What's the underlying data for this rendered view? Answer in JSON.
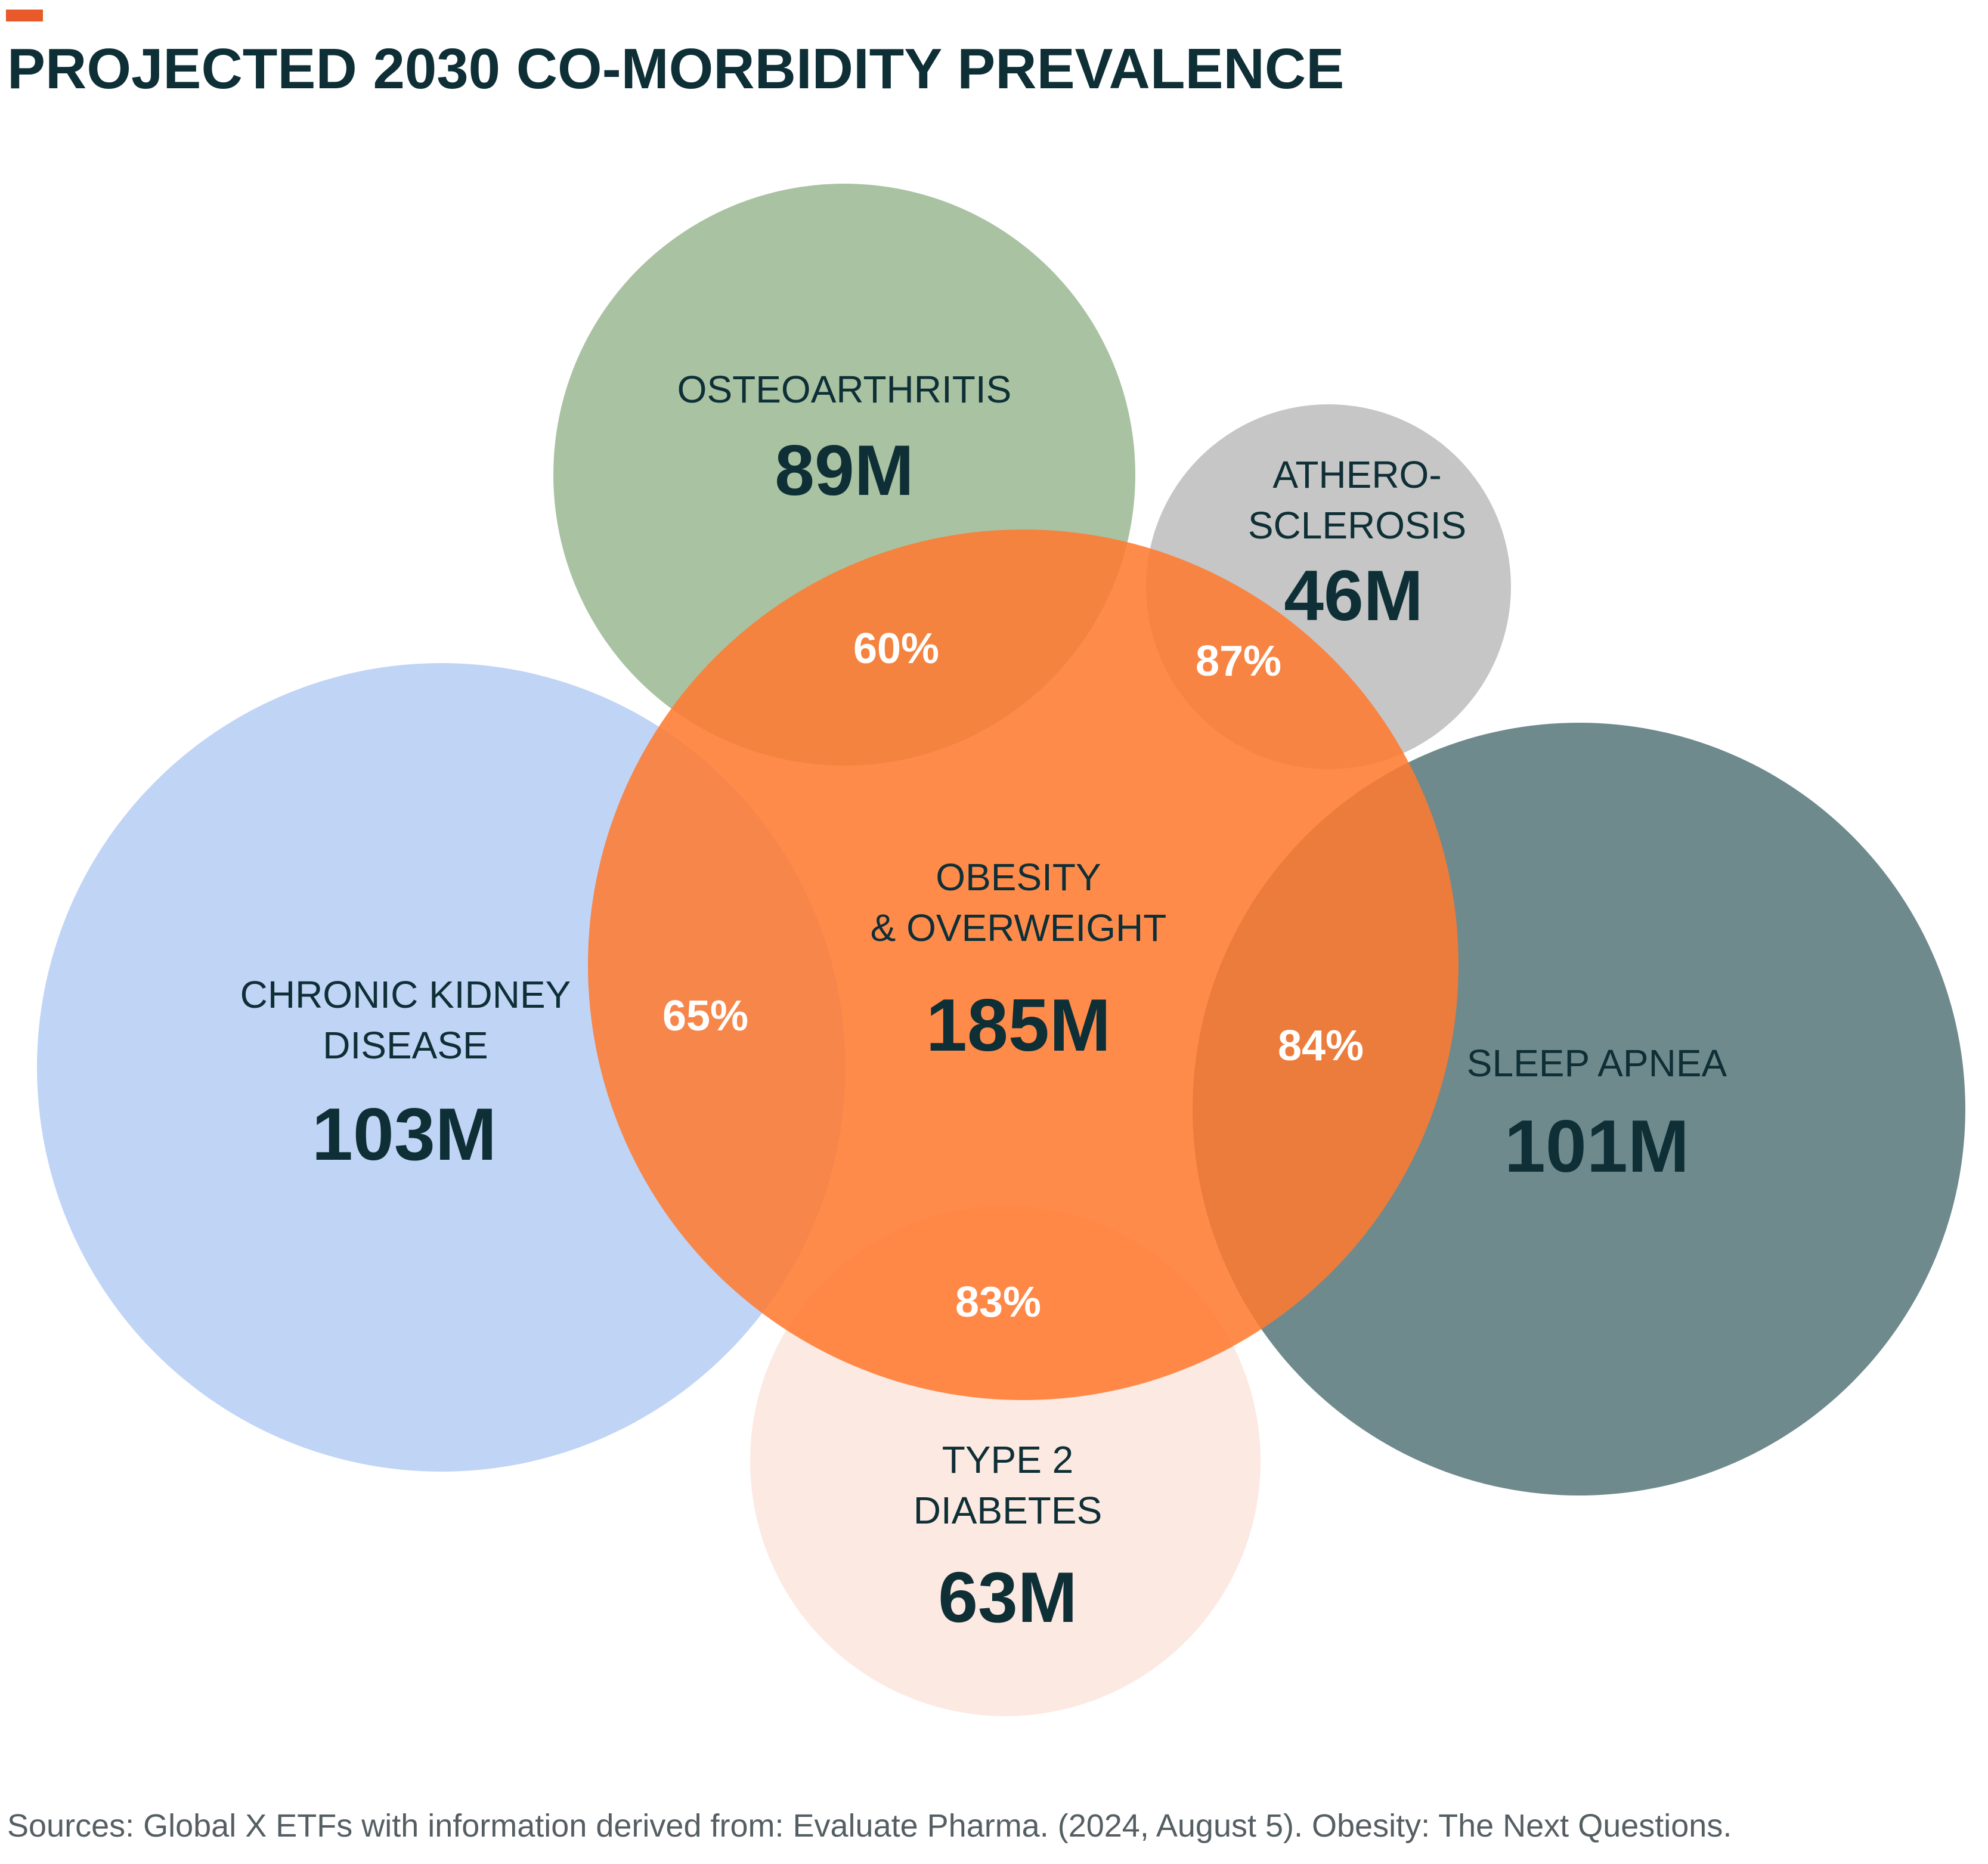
{
  "title": "PROJECTED 2030 CO-MORBIDITY PREVALENCE",
  "colors": {
    "accent": "#e85a2a",
    "title": "#0e2f36",
    "center": "#ff7a30",
    "osteoarthritis": "#a9c2a2",
    "atherosclerosis": "#c6c6c6",
    "kidney": "#c0d4f6",
    "sleep_apnea": "#6f8a8d",
    "diabetes": "#fce9e1"
  },
  "center": {
    "label_line1": "OBESITY",
    "label_line2": "& OVERWEIGHT",
    "value": "185M"
  },
  "conditions": [
    {
      "id": "osteoarthritis",
      "label_line1": "OSTEOARTHRITIS",
      "label_line2": "",
      "value": "89M",
      "overlap_pct": "60%"
    },
    {
      "id": "atherosclerosis",
      "label_line1": "ATHERO-",
      "label_line2": "SCLEROSIS",
      "value": "46M",
      "overlap_pct": "87%"
    },
    {
      "id": "kidney",
      "label_line1": "CHRONIC KIDNEY",
      "label_line2": "DISEASE",
      "value": "103M",
      "overlap_pct": "65%"
    },
    {
      "id": "sleep_apnea",
      "label_line1": "SLEEP APNEA",
      "label_line2": "",
      "value": "101M",
      "overlap_pct": "84%"
    },
    {
      "id": "diabetes",
      "label_line1": "TYPE 2",
      "label_line2": "DIABETES",
      "value": "63M",
      "overlap_pct": "83%"
    }
  ],
  "source": "Sources: Global X ETFs with information derived from: Evaluate Pharma. (2024, August 5). Obesity: The Next Questions."
}
